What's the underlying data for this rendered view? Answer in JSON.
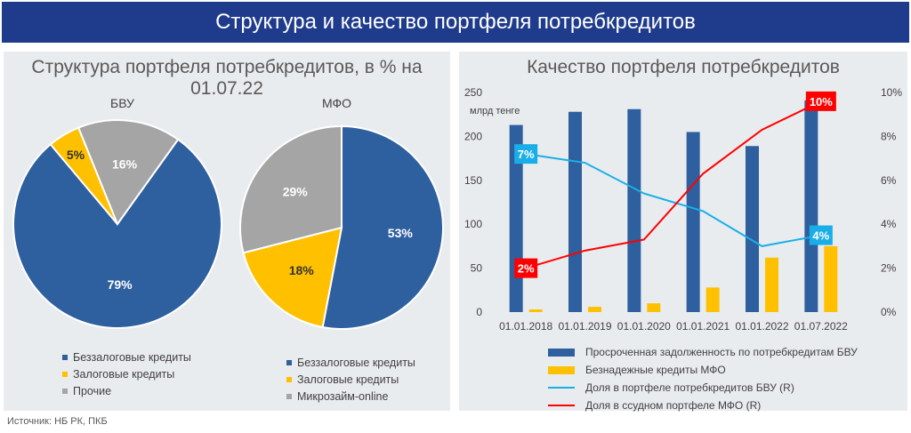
{
  "header": {
    "title": "Структура и качество портфеля потребкредитов"
  },
  "source": "Источник: НБ РК, ПКБ",
  "colors": {
    "blue": "#2e5f9e",
    "yellow": "#ffc000",
    "grey": "#a5a5a5",
    "cyan": "#1aaee8",
    "red": "#ff0000"
  },
  "chart_data": [
    {
      "type": "pie",
      "panel_title": "Структура портфеля потребкредитов, в % на 01.07.22",
      "title": "БВУ",
      "labels": [
        "Беззалоговые кредиты",
        "Залоговые кредиты",
        "Прочие"
      ],
      "values": [
        79,
        5,
        16
      ],
      "value_labels": [
        "79%",
        "5%",
        "16%"
      ]
    },
    {
      "type": "pie",
      "title": "МФО",
      "labels": [
        "Беззалоговые кредиты",
        "Залоговые кредиты",
        "Микрозайм-online"
      ],
      "values": [
        53,
        18,
        29
      ],
      "value_labels": [
        "53%",
        "18%",
        "29%"
      ]
    },
    {
      "type": "bar",
      "title": "Качество портфеля потребкредитов",
      "ylabel": "млрд тенге",
      "categories": [
        "01.01.2018",
        "01.01.2019",
        "01.01.2020",
        "01.01.2021",
        "01.01.2022",
        "01.07.2022"
      ],
      "ylim": [
        0,
        250
      ],
      "yticks": [
        "0",
        "50",
        "100",
        "150",
        "200",
        "250"
      ],
      "y2lim": [
        0,
        10
      ],
      "y2ticks": [
        "0%",
        "2%",
        "4%",
        "6%",
        "8%",
        "10%"
      ],
      "series": [
        {
          "name": "Просроченная задолженность по потребкредитам БВУ",
          "type": "bar",
          "axis": "left",
          "values": [
            213,
            228,
            231,
            205,
            189,
            241
          ]
        },
        {
          "name": "Безнадежные кредиты МФО",
          "type": "bar",
          "axis": "left",
          "values": [
            3,
            6,
            10,
            28,
            62,
            75
          ]
        },
        {
          "name": "Доля в портфеле потребкредитов БВУ (R)",
          "type": "line",
          "axis": "right",
          "values": [
            7.2,
            6.8,
            5.4,
            4.6,
            3.0,
            3.5
          ],
          "labels": [
            "7%",
            "",
            "",
            "",
            "",
            "4%"
          ]
        },
        {
          "name": "Доля в ссудном портфеле МФО (R)",
          "type": "line",
          "axis": "right",
          "values": [
            2.0,
            2.8,
            3.3,
            6.3,
            8.3,
            9.6
          ],
          "labels": [
            "2%",
            "",
            "",
            "",
            "",
            "10%"
          ]
        }
      ]
    }
  ]
}
